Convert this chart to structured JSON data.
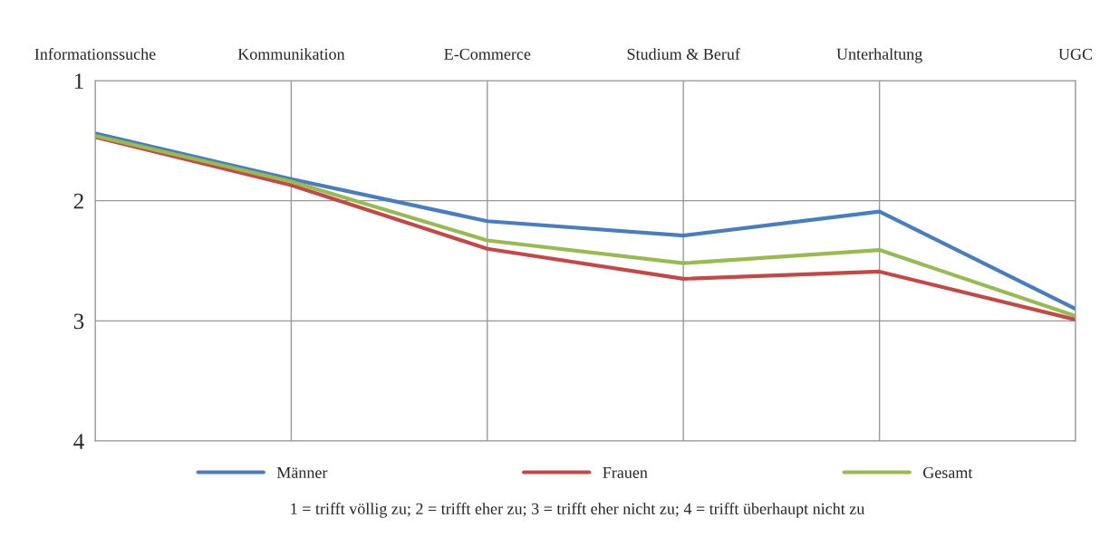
{
  "chart_data": {
    "type": "line",
    "categories": [
      "Informationssuche",
      "Kommunikation",
      "E-Commerce",
      "Studium & Beruf",
      "Unterhaltung",
      "UGC"
    ],
    "series": [
      {
        "name": "Männer",
        "color": "#4a7ebb",
        "values": [
          1.44,
          1.82,
          2.17,
          2.29,
          2.09,
          2.9
        ]
      },
      {
        "name": "Frauen",
        "color": "#be4b48",
        "values": [
          1.47,
          1.87,
          2.4,
          2.65,
          2.59,
          2.99
        ]
      },
      {
        "name": "Gesamt",
        "color": "#98b954",
        "values": [
          1.46,
          1.84,
          2.33,
          2.52,
          2.41,
          2.96
        ]
      }
    ],
    "ylim": [
      4,
      1
    ],
    "yticks": [
      1,
      2,
      3,
      4
    ],
    "grid": true,
    "legend": "bottom",
    "marker": "none",
    "line_style": "solid",
    "annotations": [
      "1 = trifft völlig zu; 2 = trifft eher zu; 3 = trifft eher nicht zu; 4 = trifft überhaupt nicht zu"
    ]
  }
}
